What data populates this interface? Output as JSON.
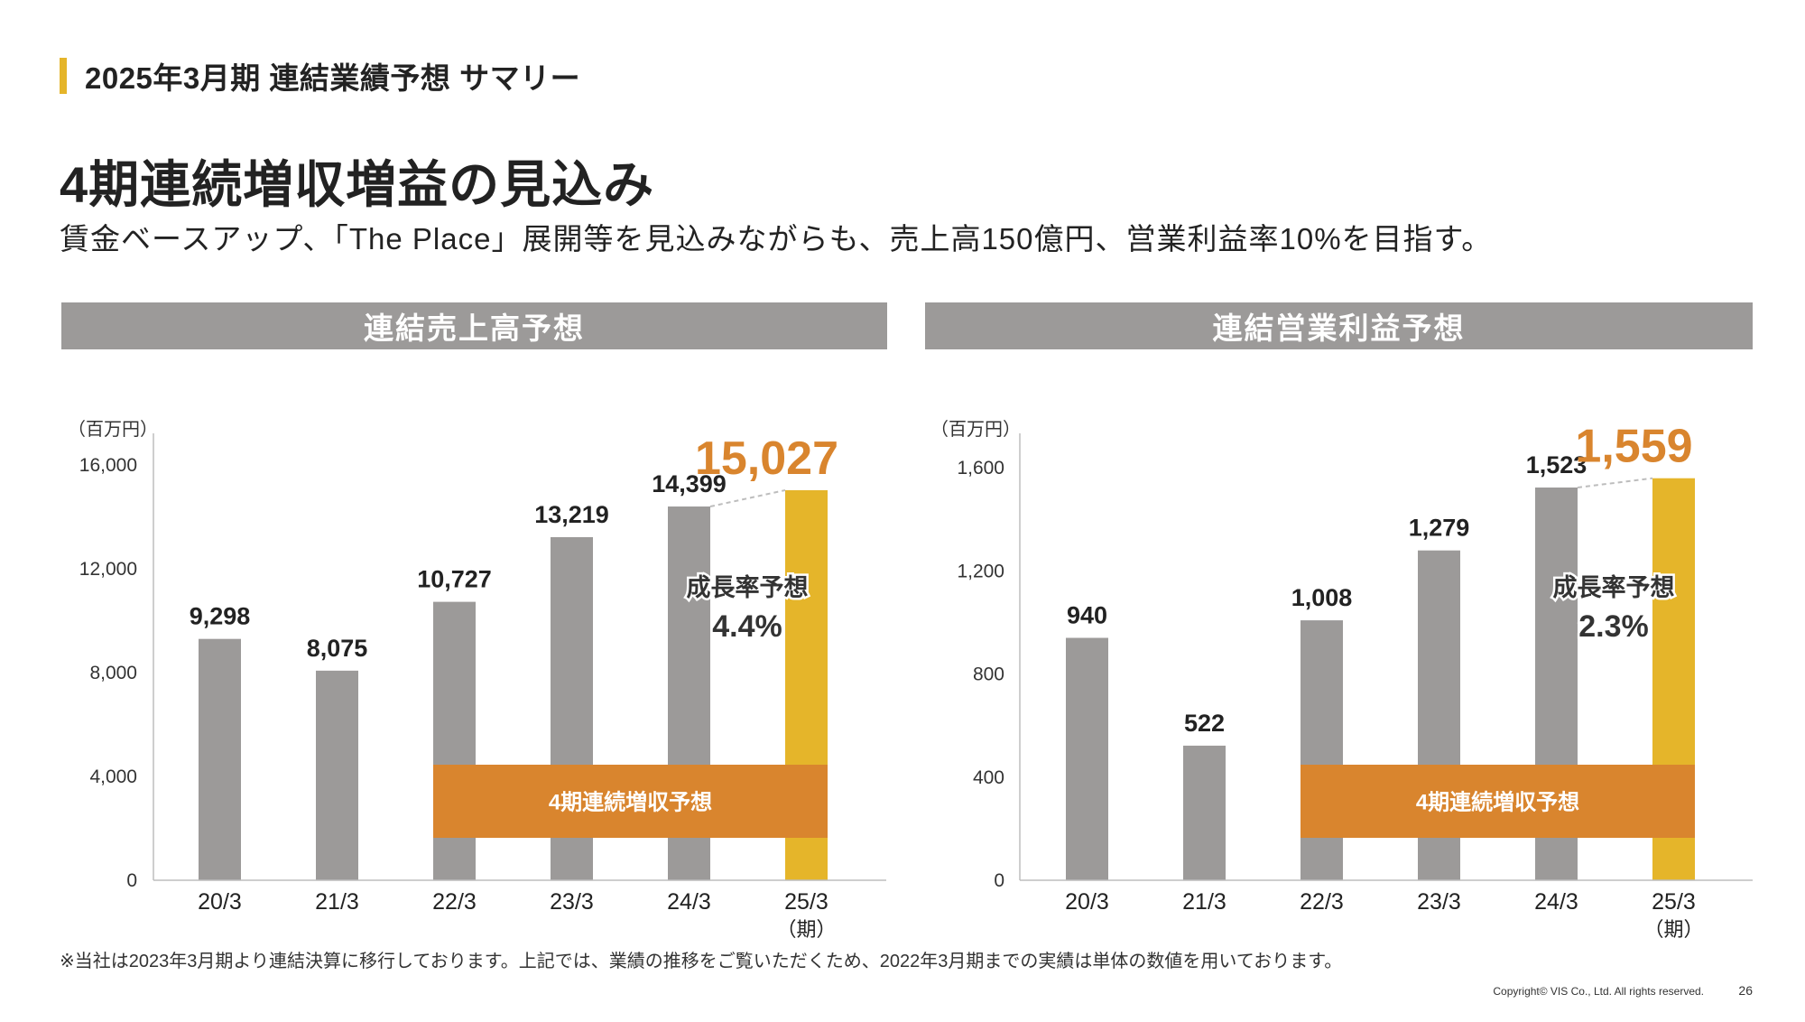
{
  "header": {
    "section_title": "2025年3月期 連結業績予想 サマリー"
  },
  "headline": "4期連続増収増益の見込み",
  "subline": "賃金ベースアップ、「The Place」展開等を見込みながらも、売上高150億円、営業利益率10%を目指す。",
  "colors": {
    "accent_bar": "#E5B52A",
    "bar_gray": "#9C9A99",
    "bar_forecast": "#E5B52A",
    "band_orange": "#D9852E",
    "big_value_orange": "#D9852E"
  },
  "chart_data": [
    {
      "type": "bar",
      "title": "連結売上高予想",
      "unit_label": "（百万円）",
      "categories": [
        "20/3",
        "21/3",
        "22/3",
        "23/3",
        "24/3",
        "25/3"
      ],
      "period_label": "（期）",
      "values": [
        9298,
        8075,
        10727,
        13219,
        14399,
        15027
      ],
      "value_labels": [
        "9,298",
        "8,075",
        "10,727",
        "13,219",
        "14,399",
        "15,027"
      ],
      "forecast_index": 5,
      "ylim": [
        0,
        16000
      ],
      "yticks": [
        0,
        4000,
        8000,
        12000,
        16000
      ],
      "ytick_labels": [
        "0",
        "4,000",
        "8,000",
        "12,000",
        "16,000"
      ],
      "growth_label": "成長率予想",
      "growth_value": "4.4%",
      "band_label": "4期連続増収予想",
      "band_from_index": 2,
      "band_to_index": 5
    },
    {
      "type": "bar",
      "title": "連結営業利益予想",
      "unit_label": "（百万円）",
      "categories": [
        "20/3",
        "21/3",
        "22/3",
        "23/3",
        "24/3",
        "25/3"
      ],
      "period_label": "（期）",
      "values": [
        940,
        522,
        1008,
        1279,
        1523,
        1559
      ],
      "value_labels": [
        "940",
        "522",
        "1,008",
        "1,279",
        "1,523",
        "1,559"
      ],
      "forecast_index": 5,
      "ylim": [
        0,
        1600
      ],
      "yticks": [
        0,
        400,
        800,
        1200,
        1600
      ],
      "ytick_labels": [
        "0",
        "400",
        "800",
        "1,200",
        "1,600"
      ],
      "growth_label": "成長率予想",
      "growth_value": "2.3%",
      "band_label": "4期連続増収予想",
      "band_from_index": 2,
      "band_to_index": 5
    }
  ],
  "footnote": "※当社は2023年3月期より連結決算に移行しております。上記では、業績の推移をご覧いただくため、2022年3月期までの実績は単体の数値を用いております。",
  "copyright": "Copyright© VIS Co., Ltd. All rights reserved.",
  "page_number": "26"
}
